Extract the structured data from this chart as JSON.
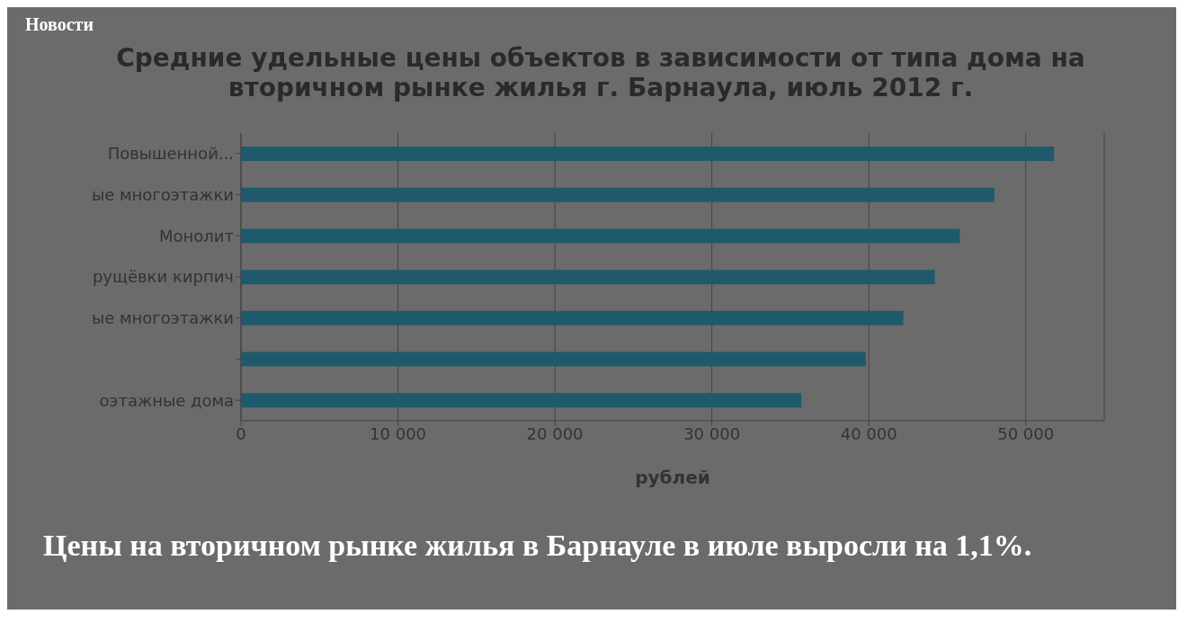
{
  "chart_data": {
    "type": "bar",
    "orientation": "horizontal",
    "title": "Средние удельные цены объектов в зависимости от типа дома на вторичном рынке жилья г. Барнаула, июль 2012 г.",
    "xlabel": "рублей",
    "categories": [
      "Повышенной...",
      "ые многоэтажки",
      "Монолит",
      "рущёвки кирпич",
      "ые многоэтажки",
      null,
      "оэтажные дома"
    ],
    "values": [
      51800,
      48000,
      45800,
      44200,
      42200,
      39800,
      35700
    ],
    "color": "#1e5a6c",
    "xlim": [
      0,
      55000
    ],
    "xticks": [
      {
        "value": 0,
        "label": "0"
      },
      {
        "value": 10000,
        "label": "10 000"
      },
      {
        "value": 20000,
        "label": "20 000"
      },
      {
        "value": 30000,
        "label": "30 000"
      },
      {
        "value": 40000,
        "label": "40 000"
      },
      {
        "value": 50000,
        "label": "50 000"
      }
    ],
    "grid": "x",
    "annotations": [
      "Новости",
      "Цены на вторичном рынке жилья в Барнауле в июле выросли на 1,1%."
    ]
  }
}
